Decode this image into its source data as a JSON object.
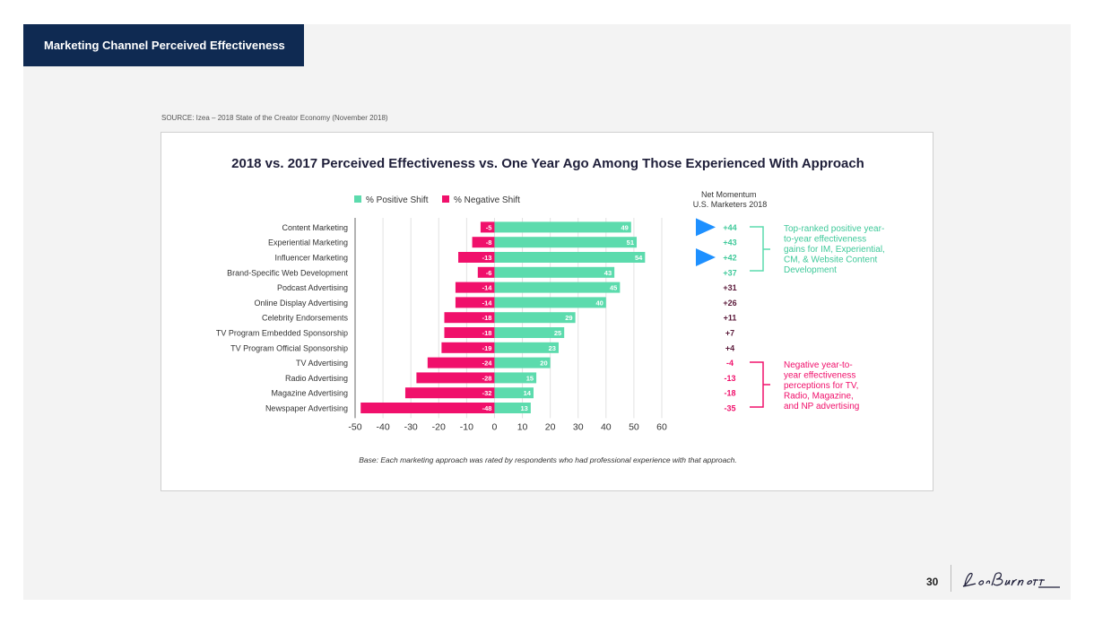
{
  "slide_title": "Marketing Channel Perceived Effectiveness",
  "source": "SOURCE: Izea – 2018 State of the Creator Economy (November 2018)",
  "page_number": "30",
  "logo_text": "Leo Burnett",
  "net_header": [
    "Net Momentum",
    "U.S. Marketers 2018"
  ],
  "positive_note": [
    "Top-ranked positive year-",
    "to-year effectiveness",
    "gains for IM, Experiential,",
    "CM, & Website Content",
    "Development"
  ],
  "negative_note": [
    "Negative year-to-",
    "year effectiveness",
    "perceptions for TV,",
    "Radio, Magazine,",
    "and NP advertising"
  ],
  "base_note": "Base: Each marketing approach was rated by respondents who had professional experience with that approach.",
  "colors": {
    "positive": "#5cdbad",
    "negative": "#f0106b",
    "navy": "#0f2a52",
    "arrow": "#1e90ff",
    "title": "#1f1f3a"
  },
  "chart_data": {
    "type": "bar",
    "orientation": "horizontal",
    "title": "2018 vs. 2017 Perceived Effectiveness vs. One Year Ago Among Those Experienced With Approach",
    "categories": [
      "Content Marketing",
      "Experiential Marketing",
      "Influencer Marketing",
      "Brand-Specific Web Development",
      "Podcast Advertising",
      "Online Display Advertising",
      "Celebrity Endorsements",
      "TV Program Embedded Sponsorship",
      "TV Program Official Sponsorship",
      "TV Advertising",
      "Radio Advertising",
      "Magazine Advertising",
      "Newspaper Advertising"
    ],
    "series": [
      {
        "name": "% Positive Shift",
        "values": [
          49,
          51,
          54,
          43,
          45,
          40,
          29,
          25,
          23,
          20,
          15,
          14,
          13
        ]
      },
      {
        "name": "% Negative Shift",
        "values": [
          -5,
          -8,
          -13,
          -6,
          -14,
          -14,
          -18,
          -18,
          -19,
          -24,
          -28,
          -32,
          -48
        ]
      }
    ],
    "net_momentum": [
      "+44",
      "+43",
      "+42",
      "+37",
      "+31",
      "+26",
      "+11",
      "+7",
      "+4",
      "-4",
      "-13",
      "-18",
      "-35"
    ],
    "highlighted_rows": [
      0,
      2
    ],
    "xlim": [
      -50,
      60
    ],
    "xticks": [
      -50,
      -40,
      -30,
      -20,
      -10,
      0,
      10,
      20,
      30,
      40,
      50,
      60
    ],
    "legend": "top",
    "grid": true
  }
}
